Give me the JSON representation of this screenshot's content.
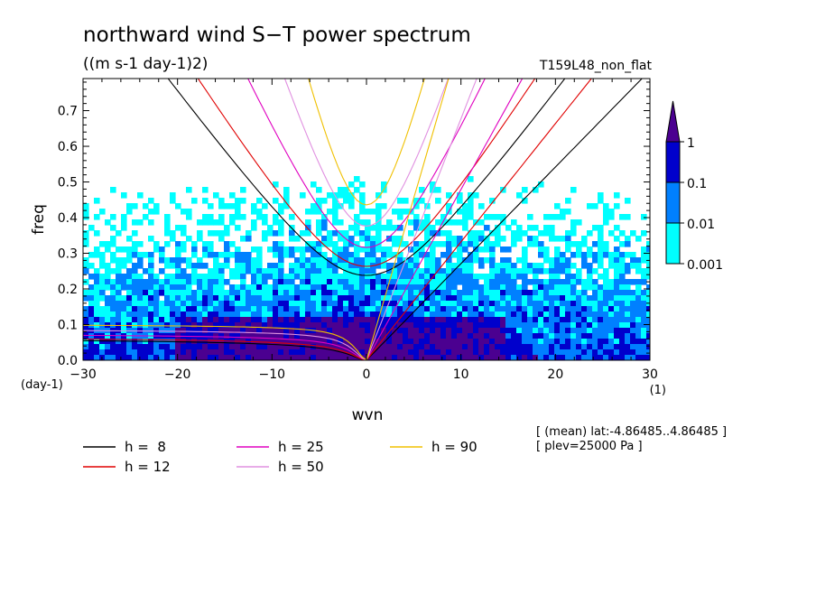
{
  "chart_data": {
    "type": "heatmap",
    "title": "northward wind S−T power spectrum",
    "subtitle": "((m s-1 day-1)2)",
    "run_label": "T159L48_non_flat",
    "xlabel": "wvn",
    "ylabel": "freq",
    "x_unit": "(1)",
    "y_unit": "(day-1)",
    "xlim": [
      -30,
      30
    ],
    "ylim": [
      0,
      0.79
    ],
    "xticks": [
      {
        "value": -30,
        "label": "−30"
      },
      {
        "value": -20,
        "label": "−20"
      },
      {
        "value": -10,
        "label": "−10"
      },
      {
        "value": 0,
        "label": "0"
      },
      {
        "value": 10,
        "label": "10"
      },
      {
        "value": 20,
        "label": "20"
      },
      {
        "value": 30,
        "label": "30"
      }
    ],
    "yticks": [
      {
        "value": 0,
        "label": "0.0"
      },
      {
        "value": 0.1,
        "label": "0.1"
      },
      {
        "value": 0.2,
        "label": "0.2"
      },
      {
        "value": 0.3,
        "label": "0.3"
      },
      {
        "value": 0.4,
        "label": "0.4"
      },
      {
        "value": 0.5,
        "label": "0.5"
      },
      {
        "value": 0.6,
        "label": "0.6"
      },
      {
        "value": 0.7,
        "label": "0.7"
      }
    ],
    "colorbar": {
      "levels": [
        {
          "from": 0.001,
          "to": 0.01,
          "color": "#00ffff"
        },
        {
          "from": 0.01,
          "to": 0.1,
          "color": "#0080ff"
        },
        {
          "from": 0.1,
          "to": 1,
          "color": "#0000cc"
        },
        {
          "from": 1,
          "to": null,
          "color": "#4b0090"
        }
      ],
      "labels": [
        "1",
        "0.1",
        "0.01",
        "0.001"
      ]
    },
    "dispersion_curves": [
      {
        "name": "h =  8",
        "h": 8,
        "color": "#000000"
      },
      {
        "name": "h = 12",
        "h": 12,
        "color": "#e00000"
      },
      {
        "name": "h = 25",
        "h": 25,
        "color": "#e000c0"
      },
      {
        "name": "h = 50",
        "h": 50,
        "color": "#e090e0"
      },
      {
        "name": "h = 90",
        "h": 90,
        "color": "#f0c000"
      }
    ],
    "legend_placement": "bottom",
    "annotations": [
      "[ (mean) lat:-4.86485..4.86485 ]",
      "[ plev=25000 Pa ]"
    ]
  }
}
